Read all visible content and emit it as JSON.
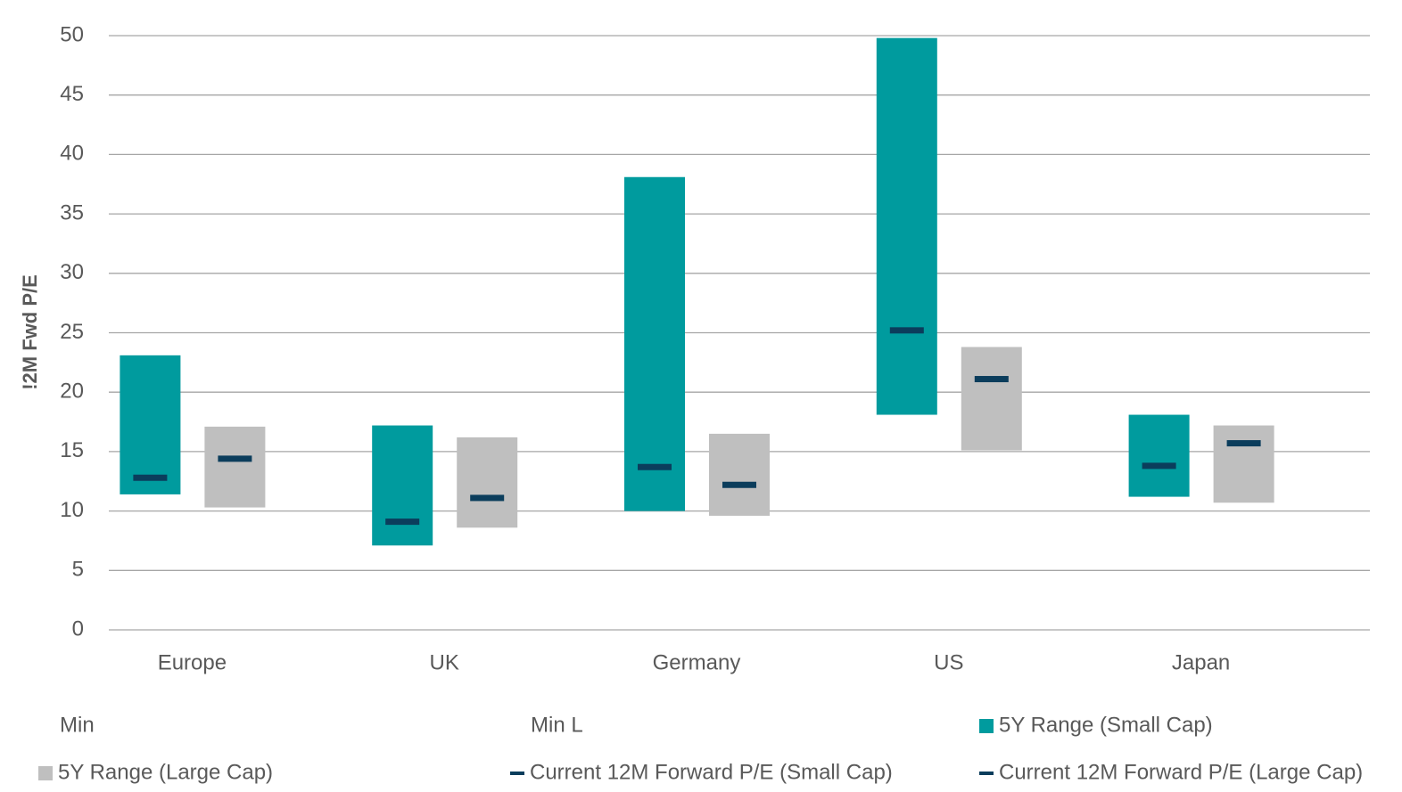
{
  "chart_data": {
    "type": "floating_bar",
    "y_label": "!2M Fwd P/E",
    "categories": [
      "Europe",
      "UK",
      "Germany",
      "US",
      "Japan"
    ],
    "ylim": [
      0,
      50
    ],
    "yticks": [
      0,
      5,
      10,
      15,
      20,
      25,
      30,
      35,
      40,
      45,
      50
    ],
    "grid": true,
    "series": [
      {
        "name": "Min",
        "color": null,
        "values": [
          11.4,
          7.1,
          10.0,
          18.1,
          11.2
        ]
      },
      {
        "name": "Min L",
        "color": null,
        "values": [
          10.3,
          8.6,
          9.6,
          15.1,
          10.7
        ]
      },
      {
        "name": "5Y Range (Small Cap)",
        "color": "#009b9e",
        "values": [
          23.1,
          17.2,
          38.1,
          49.8,
          18.1
        ]
      },
      {
        "name": "5Y Range (Large Cap)",
        "color": "#bfbfbf",
        "values": [
          17.1,
          16.2,
          16.5,
          23.8,
          17.2
        ]
      },
      {
        "name": "Current 12M Forward P/E (Small Cap)",
        "color": "#0b3d5c",
        "values": [
          12.8,
          9.1,
          13.7,
          25.2,
          13.8
        ]
      },
      {
        "name": "Current 12M Forward P/E (Large Cap)",
        "color": "#0b3d5c",
        "values": [
          14.4,
          11.1,
          12.2,
          21.1,
          15.7
        ]
      }
    ]
  }
}
